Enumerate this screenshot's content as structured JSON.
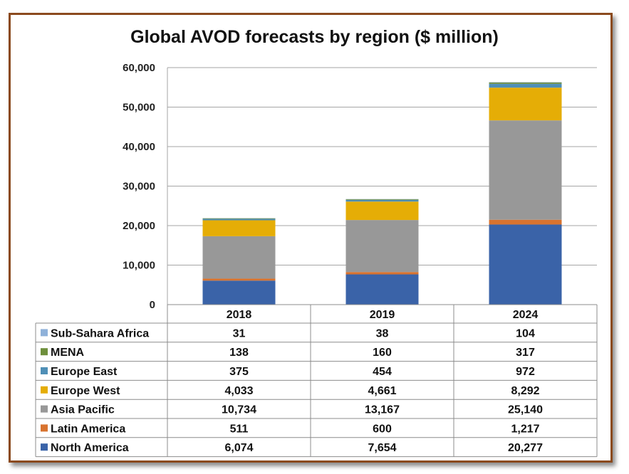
{
  "chart_data": {
    "type": "bar",
    "stacked": true,
    "title": "Global AVOD forecasts by region ($ million)",
    "categories": [
      "2018",
      "2019",
      "2024"
    ],
    "ylim": [
      0,
      60000
    ],
    "yticks": [
      "0",
      "10,000",
      "20,000",
      "30,000",
      "40,000",
      "50,000",
      "60,000"
    ],
    "grid": true,
    "legend": "data-table",
    "series": [
      {
        "name": "North America",
        "color": "#3a63a8",
        "values": [
          6074,
          7654,
          20277
        ],
        "labels": [
          "6,074",
          "7,654",
          "20,277"
        ]
      },
      {
        "name": "Latin America",
        "color": "#d8732f",
        "values": [
          511,
          600,
          1217
        ],
        "labels": [
          "511",
          "600",
          "1,217"
        ]
      },
      {
        "name": "Asia Pacific",
        "color": "#989898",
        "values": [
          10734,
          13167,
          25140
        ],
        "labels": [
          "10,734",
          "13,167",
          "25,140"
        ]
      },
      {
        "name": "Europe West",
        "color": "#e5ad06",
        "values": [
          4033,
          4661,
          8292
        ],
        "labels": [
          "4,033",
          "4,661",
          "8,292"
        ]
      },
      {
        "name": "Europe East",
        "color": "#4f8fb6",
        "values": [
          375,
          454,
          972
        ],
        "labels": [
          "375",
          "454",
          "972"
        ]
      },
      {
        "name": "MENA",
        "color": "#6e8f3c",
        "values": [
          138,
          160,
          317
        ],
        "labels": [
          "138",
          "160",
          "317"
        ]
      },
      {
        "name": "Sub-Sahara Africa",
        "color": "#8fb1d9",
        "values": [
          31,
          38,
          104
        ],
        "labels": [
          "31",
          "38",
          "104"
        ]
      }
    ]
  }
}
